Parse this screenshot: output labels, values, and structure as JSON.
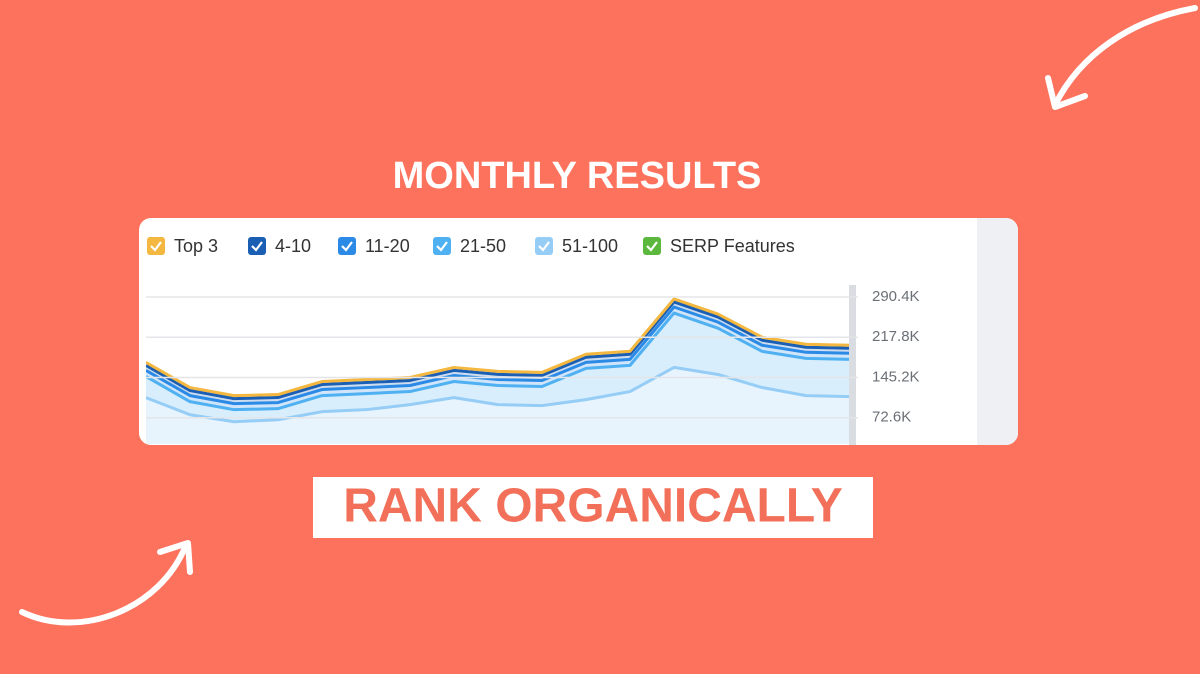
{
  "header": {
    "title": "MONTHLY RESULTS"
  },
  "footer": {
    "label": "RANK ORGANICALLY"
  },
  "chart_data": {
    "type": "area",
    "stacked": true,
    "categories": [
      null,
      null,
      null,
      null,
      null,
      null,
      null,
      null,
      null,
      null,
      null,
      null,
      null,
      null,
      null,
      null,
      null
    ],
    "series": [
      {
        "name": "Top 3",
        "color": "#f4b73f",
        "values": [
          5400,
          5400,
          5400,
          5400,
          5400,
          5400,
          5400,
          5400,
          5400,
          5400,
          5400,
          5400,
          5400,
          5400,
          5400,
          5400,
          5400
        ]
      },
      {
        "name": "4-10",
        "color": "#1a5fb4",
        "values": [
          9100,
          9100,
          9100,
          9100,
          9100,
          9100,
          9100,
          9100,
          9100,
          9100,
          9100,
          9100,
          9100,
          9100,
          9100,
          9100,
          9100
        ]
      },
      {
        "name": "11-20",
        "color": "#2b8ae6",
        "values": [
          10900,
          10900,
          10900,
          10900,
          10900,
          10900,
          10900,
          10900,
          10900,
          10900,
          10900,
          10900,
          10900,
          10900,
          10900,
          10900,
          10900
        ]
      },
      {
        "name": "21-50",
        "color": "#4fb0f2",
        "values": [
          38100,
          23600,
          21800,
          20000,
          29000,
          29000,
          23600,
          29000,
          34500,
          34500,
          56300,
          47200,
          98000,
          83500,
          65300,
          67200,
          67200
        ]
      },
      {
        "name": "51-100",
        "color": "#95cdf6",
        "values": [
          108900,
          78000,
          65300,
          69000,
          83500,
          87100,
          96200,
          108900,
          96200,
          94400,
          105300,
          119800,
          163400,
          150600,
          127100,
          112500,
          110700
        ]
      },
      {
        "name": "SERP Features",
        "color": "#5cb83c",
        "values": [
          null,
          null,
          null,
          null,
          null,
          null,
          null,
          null,
          null,
          null,
          null,
          null,
          null,
          null,
          null,
          null,
          null
        ]
      }
    ],
    "ylim": [
      27000,
      312000
    ],
    "yticks": [
      {
        "value": 72600,
        "label": "72.6K"
      },
      {
        "value": 145200,
        "label": "145.2K"
      },
      {
        "value": 217800,
        "label": "217.8K"
      },
      {
        "value": 290400,
        "label": "290.4K"
      }
    ],
    "grid": true
  }
}
